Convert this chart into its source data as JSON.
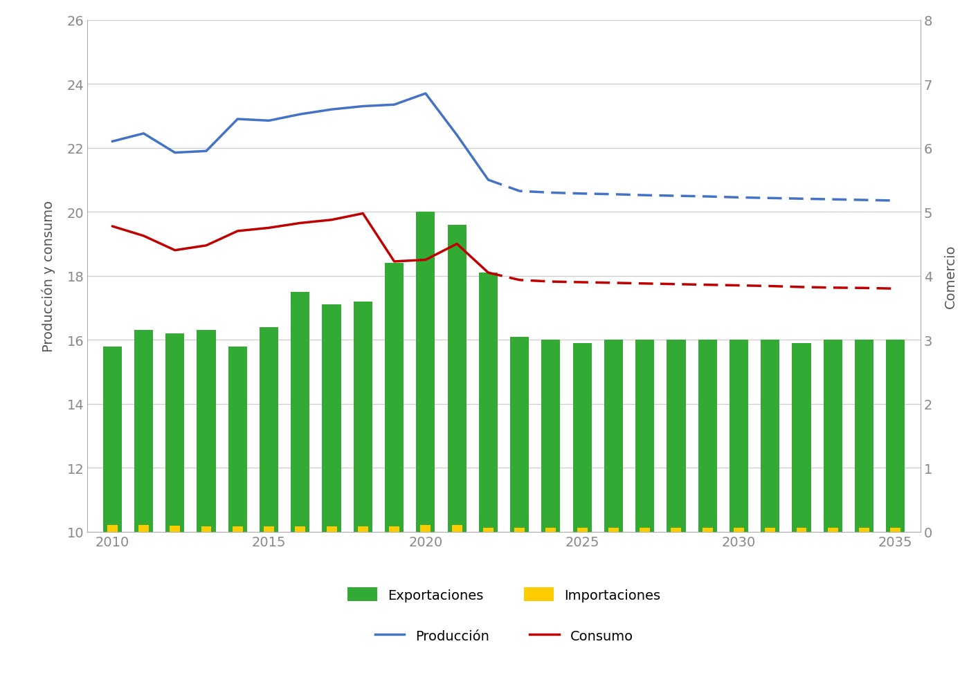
{
  "years_bars": [
    2010,
    2011,
    2012,
    2013,
    2014,
    2015,
    2016,
    2017,
    2018,
    2019,
    2020,
    2021,
    2022,
    2023,
    2024,
    2025,
    2026,
    2027,
    2028,
    2029,
    2030,
    2031,
    2032,
    2033,
    2034,
    2035
  ],
  "exports": [
    15.8,
    16.3,
    16.2,
    16.3,
    15.8,
    16.4,
    17.5,
    17.1,
    17.2,
    18.4,
    20.0,
    19.6,
    18.1,
    16.1,
    16.0,
    15.9,
    16.0,
    16.0,
    16.0,
    16.0,
    16.0,
    16.0,
    15.9,
    16.0,
    16.0,
    16.0
  ],
  "imports": [
    10.22,
    10.22,
    10.2,
    10.18,
    10.18,
    10.18,
    10.18,
    10.18,
    10.18,
    10.18,
    10.22,
    10.22,
    10.12,
    10.12,
    10.12,
    10.12,
    10.12,
    10.12,
    10.12,
    10.12,
    10.12,
    10.12,
    10.12,
    10.12,
    10.12,
    10.12
  ],
  "years_lines": [
    2010,
    2011,
    2012,
    2013,
    2014,
    2015,
    2016,
    2017,
    2018,
    2019,
    2020,
    2021,
    2022
  ],
  "production_solid": [
    22.2,
    22.45,
    21.85,
    21.9,
    22.9,
    22.85,
    23.05,
    23.2,
    23.3,
    23.35,
    23.7,
    22.4,
    21.0
  ],
  "consumption_solid": [
    19.55,
    19.25,
    18.8,
    18.95,
    19.4,
    19.5,
    19.65,
    19.75,
    19.95,
    18.45,
    18.5,
    19.0,
    18.1
  ],
  "years_dashed": [
    2022,
    2023,
    2024,
    2025,
    2026,
    2027,
    2028,
    2029,
    2030,
    2031,
    2032,
    2033,
    2034,
    2035
  ],
  "production_dashed": [
    21.0,
    20.65,
    20.6,
    20.57,
    20.55,
    20.52,
    20.5,
    20.48,
    20.45,
    20.43,
    20.41,
    20.39,
    20.37,
    20.35
  ],
  "consumption_dashed": [
    18.1,
    17.87,
    17.82,
    17.8,
    17.78,
    17.76,
    17.74,
    17.72,
    17.7,
    17.68,
    17.65,
    17.63,
    17.62,
    17.6
  ],
  "bar_color_exports": "#33aa33",
  "bar_color_imports": "#ffcc00",
  "line_color_production": "#4472c4",
  "line_color_consumption": "#c00000",
  "ylim_left": [
    10,
    26
  ],
  "ylim_right": [
    0,
    8
  ],
  "yticks_left": [
    10,
    12,
    14,
    16,
    18,
    20,
    22,
    24,
    26
  ],
  "yticks_right": [
    0,
    1,
    2,
    3,
    4,
    5,
    6,
    7,
    8
  ],
  "ylabel_left": "Producción y consumo",
  "ylabel_right": "Comercio",
  "legend_items": [
    "Exportaciones",
    "Importaciones",
    "Producción",
    "Consumo"
  ],
  "background_color": "#ffffff",
  "grid_color": "#cccccc",
  "axis_fontsize": 14,
  "tick_fontsize": 14,
  "legend_fontsize": 14
}
